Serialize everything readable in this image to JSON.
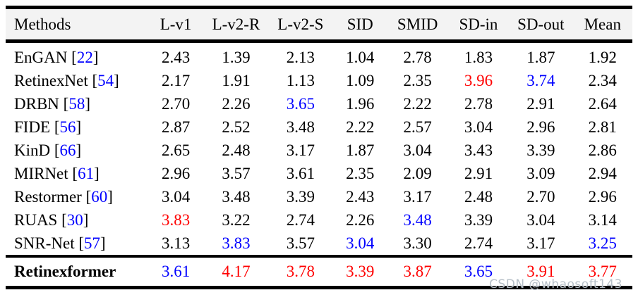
{
  "colors": {
    "best": "#ff0000",
    "second": "#0000ff",
    "citation": "#0000ff",
    "header_bg": "#f3f3f3",
    "rule": "#000000",
    "text": "#000000"
  },
  "watermark": "CSDN @whaosoft143",
  "table": {
    "columns": [
      "Methods",
      "L-v1",
      "L-v2-R",
      "L-v2-S",
      "SID",
      "SMID",
      "SD-in",
      "SD-out",
      "Mean"
    ],
    "rows": [
      {
        "method": "EnGAN",
        "cite": "22",
        "bold": false,
        "values": [
          {
            "v": "2.43",
            "c": "k"
          },
          {
            "v": "1.39",
            "c": "k"
          },
          {
            "v": "2.13",
            "c": "k"
          },
          {
            "v": "1.04",
            "c": "k"
          },
          {
            "v": "2.78",
            "c": "k"
          },
          {
            "v": "1.83",
            "c": "k"
          },
          {
            "v": "1.87",
            "c": "k"
          },
          {
            "v": "1.92",
            "c": "k"
          }
        ]
      },
      {
        "method": "RetinexNet",
        "cite": "54",
        "bold": false,
        "values": [
          {
            "v": "2.17",
            "c": "k"
          },
          {
            "v": "1.91",
            "c": "k"
          },
          {
            "v": "1.13",
            "c": "k"
          },
          {
            "v": "1.09",
            "c": "k"
          },
          {
            "v": "2.35",
            "c": "k"
          },
          {
            "v": "3.96",
            "c": "r"
          },
          {
            "v": "3.74",
            "c": "b"
          },
          {
            "v": "2.34",
            "c": "k"
          }
        ]
      },
      {
        "method": "DRBN",
        "cite": "58",
        "bold": false,
        "values": [
          {
            "v": "2.70",
            "c": "k"
          },
          {
            "v": "2.26",
            "c": "k"
          },
          {
            "v": "3.65",
            "c": "b"
          },
          {
            "v": "1.96",
            "c": "k"
          },
          {
            "v": "2.22",
            "c": "k"
          },
          {
            "v": "2.78",
            "c": "k"
          },
          {
            "v": "2.91",
            "c": "k"
          },
          {
            "v": "2.64",
            "c": "k"
          }
        ]
      },
      {
        "method": "FIDE",
        "cite": "56",
        "bold": false,
        "values": [
          {
            "v": "2.87",
            "c": "k"
          },
          {
            "v": "2.52",
            "c": "k"
          },
          {
            "v": "3.48",
            "c": "k"
          },
          {
            "v": "2.22",
            "c": "k"
          },
          {
            "v": "2.57",
            "c": "k"
          },
          {
            "v": "3.04",
            "c": "k"
          },
          {
            "v": "2.96",
            "c": "k"
          },
          {
            "v": "2.81",
            "c": "k"
          }
        ]
      },
      {
        "method": "KinD",
        "cite": "66",
        "bold": false,
        "values": [
          {
            "v": "2.65",
            "c": "k"
          },
          {
            "v": "2.48",
            "c": "k"
          },
          {
            "v": "3.17",
            "c": "k"
          },
          {
            "v": "1.87",
            "c": "k"
          },
          {
            "v": "3.04",
            "c": "k"
          },
          {
            "v": "3.43",
            "c": "k"
          },
          {
            "v": "3.39",
            "c": "k"
          },
          {
            "v": "2.86",
            "c": "k"
          }
        ]
      },
      {
        "method": "MIRNet",
        "cite": "61",
        "bold": false,
        "values": [
          {
            "v": "2.96",
            "c": "k"
          },
          {
            "v": "3.57",
            "c": "k"
          },
          {
            "v": "3.61",
            "c": "k"
          },
          {
            "v": "2.35",
            "c": "k"
          },
          {
            "v": "2.09",
            "c": "k"
          },
          {
            "v": "2.91",
            "c": "k"
          },
          {
            "v": "3.09",
            "c": "k"
          },
          {
            "v": "2.94",
            "c": "k"
          }
        ]
      },
      {
        "method": "Restormer",
        "cite": "60",
        "bold": false,
        "values": [
          {
            "v": "3.04",
            "c": "k"
          },
          {
            "v": "3.48",
            "c": "k"
          },
          {
            "v": "3.39",
            "c": "k"
          },
          {
            "v": "2.43",
            "c": "k"
          },
          {
            "v": "3.17",
            "c": "k"
          },
          {
            "v": "2.48",
            "c": "k"
          },
          {
            "v": "2.70",
            "c": "k"
          },
          {
            "v": "2.96",
            "c": "k"
          }
        ]
      },
      {
        "method": "RUAS",
        "cite": "30",
        "bold": false,
        "values": [
          {
            "v": "3.83",
            "c": "r"
          },
          {
            "v": "3.22",
            "c": "k"
          },
          {
            "v": "2.74",
            "c": "k"
          },
          {
            "v": "2.26",
            "c": "k"
          },
          {
            "v": "3.48",
            "c": "b"
          },
          {
            "v": "3.39",
            "c": "k"
          },
          {
            "v": "3.04",
            "c": "k"
          },
          {
            "v": "3.14",
            "c": "k"
          }
        ]
      },
      {
        "method": "SNR-Net",
        "cite": "57",
        "bold": false,
        "values": [
          {
            "v": "3.13",
            "c": "k"
          },
          {
            "v": "3.83",
            "c": "b"
          },
          {
            "v": "3.57",
            "c": "k"
          },
          {
            "v": "3.04",
            "c": "b"
          },
          {
            "v": "3.30",
            "c": "k"
          },
          {
            "v": "2.74",
            "c": "k"
          },
          {
            "v": "3.17",
            "c": "k"
          },
          {
            "v": "3.25",
            "c": "b"
          }
        ]
      },
      {
        "method": "Retinexformer",
        "cite": null,
        "bold": true,
        "values": [
          {
            "v": "3.61",
            "c": "b"
          },
          {
            "v": "4.17",
            "c": "r"
          },
          {
            "v": "3.78",
            "c": "r"
          },
          {
            "v": "3.39",
            "c": "r"
          },
          {
            "v": "3.87",
            "c": "r"
          },
          {
            "v": "3.65",
            "c": "b"
          },
          {
            "v": "3.91",
            "c": "r"
          },
          {
            "v": "3.77",
            "c": "r"
          }
        ]
      }
    ]
  }
}
